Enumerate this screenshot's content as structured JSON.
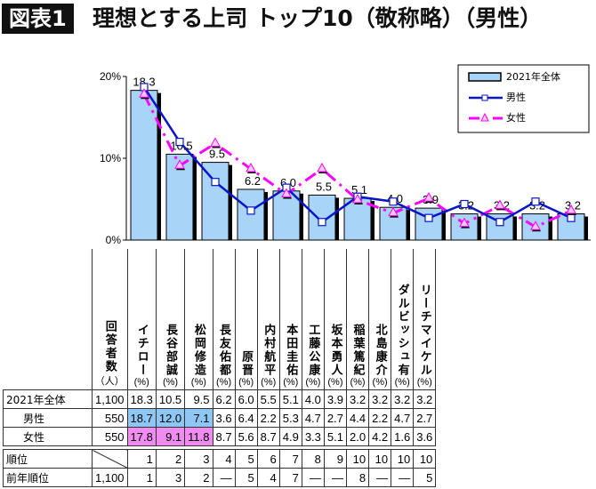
{
  "title": {
    "badge": "図表1",
    "text": "理想とする上司 トップ10（敬称略）（男性）"
  },
  "chart_data": {
    "type": "bar",
    "categories": [
      "イチロー",
      "長谷部誠",
      "松岡修造",
      "長友佑都",
      "原晋",
      "内村航平",
      "本田圭佑",
      "工藤公康",
      "坂本勇人",
      "稲葉篤紀",
      "北島康介",
      "ダルビッシュ有",
      "リーチマイケル"
    ],
    "series": [
      {
        "name": "2021年全体",
        "type": "bar",
        "color": "#a8d4f8",
        "values": [
          18.3,
          10.5,
          9.5,
          6.2,
          6.0,
          5.5,
          5.1,
          4.0,
          3.9,
          3.2,
          3.2,
          3.2,
          3.2
        ]
      },
      {
        "name": "男性",
        "type": "line",
        "color": "#0a14c8",
        "marker": "square",
        "values": [
          18.7,
          12.0,
          7.1,
          3.6,
          6.4,
          2.2,
          5.3,
          4.7,
          2.7,
          4.4,
          2.2,
          4.7,
          2.7
        ]
      },
      {
        "name": "女性",
        "type": "line",
        "color": "#ff00ff",
        "marker": "triangle",
        "dashed": true,
        "values": [
          17.8,
          9.1,
          11.8,
          8.7,
          5.6,
          8.7,
          4.9,
          3.3,
          5.1,
          2.0,
          4.2,
          1.6,
          3.6
        ]
      }
    ],
    "yticks": [
      "0%",
      "10%",
      "20%"
    ],
    "ylim": [
      0,
      20
    ],
    "legend": "top-right",
    "grid": false
  },
  "table": {
    "header_label": "回答者数",
    "count_unit": "（人）",
    "pct_unit": "(%)",
    "rows": [
      {
        "label": "2021年全体",
        "count": "1,100",
        "values": [
          "18.3",
          "10.5",
          "9.5",
          "6.2",
          "6.0",
          "5.5",
          "5.1",
          "4.0",
          "3.9",
          "3.2",
          "3.2",
          "3.2",
          "3.2"
        ]
      },
      {
        "label": "男性",
        "count": "550",
        "values": [
          "18.7",
          "12.0",
          "7.1",
          "3.6",
          "6.4",
          "2.2",
          "5.3",
          "4.7",
          "2.7",
          "4.4",
          "2.2",
          "4.7",
          "2.7"
        ],
        "highlight": "hm"
      },
      {
        "label": "女性",
        "count": "550",
        "values": [
          "17.8",
          "9.1",
          "11.8",
          "8.7",
          "5.6",
          "8.7",
          "4.9",
          "3.3",
          "5.1",
          "2.0",
          "4.2",
          "1.6",
          "3.6"
        ],
        "highlight": "hf"
      }
    ],
    "rank_rows": [
      {
        "label": "順位",
        "count": "",
        "values": [
          "1",
          "2",
          "3",
          "4",
          "5",
          "6",
          "7",
          "8",
          "9",
          "10",
          "10",
          "10",
          "10"
        ]
      },
      {
        "label": "前年順位",
        "count": "1,100",
        "values": [
          "1",
          "3",
          "2",
          "—",
          "5",
          "4",
          "7",
          "—",
          "—",
          "8",
          "—",
          "—",
          "5"
        ]
      }
    ]
  }
}
